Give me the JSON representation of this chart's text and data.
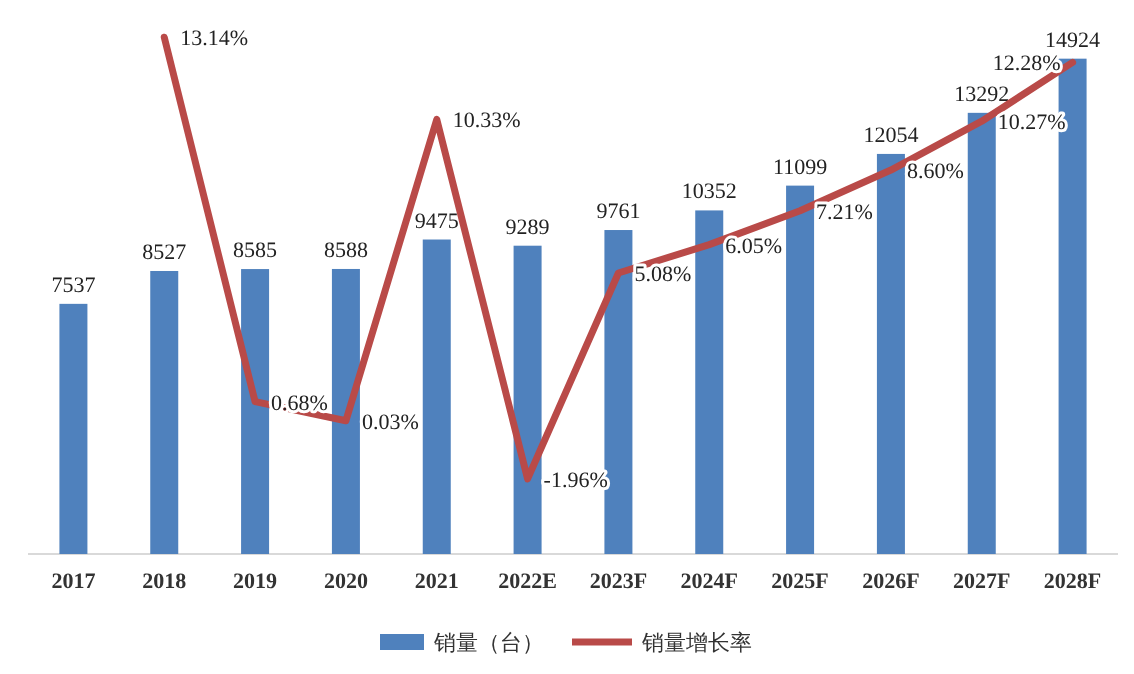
{
  "chart_data": {
    "type": "bar",
    "categories": [
      "2017",
      "2018",
      "2019",
      "2020",
      "2021",
      "2022E",
      "2023F",
      "2024F",
      "2025F",
      "2026F",
      "2027F",
      "2028F"
    ],
    "series": [
      {
        "name": "销量（台）",
        "color": "#4f81bd",
        "values": [
          7537,
          8527,
          8585,
          8588,
          9475,
          9289,
          9761,
          10352,
          11099,
          12054,
          13292,
          14924
        ],
        "value_labels": [
          "7537",
          "8527",
          "8585",
          "8588",
          "9475",
          "9289",
          "9761",
          "10352",
          "11099",
          "12054",
          "13292",
          "14924"
        ]
      },
      {
        "name": "销量增长率",
        "type": "line",
        "axis": "y2",
        "color": "#b94a48",
        "values": [
          null,
          13.14,
          0.68,
          0.03,
          10.33,
          -1.96,
          5.08,
          6.05,
          7.21,
          8.6,
          10.27,
          12.28
        ],
        "value_labels": [
          null,
          "13.14%",
          "0.68%",
          "0.03%",
          "10.33%",
          "-1.96%",
          "5.08%",
          "6.05%",
          "7.21%",
          "8.60%",
          "10.27%",
          "12.28%"
        ]
      }
    ],
    "tick_labels": "x",
    "legend": "bottom",
    "marker": "none",
    "line_style": "solid"
  }
}
